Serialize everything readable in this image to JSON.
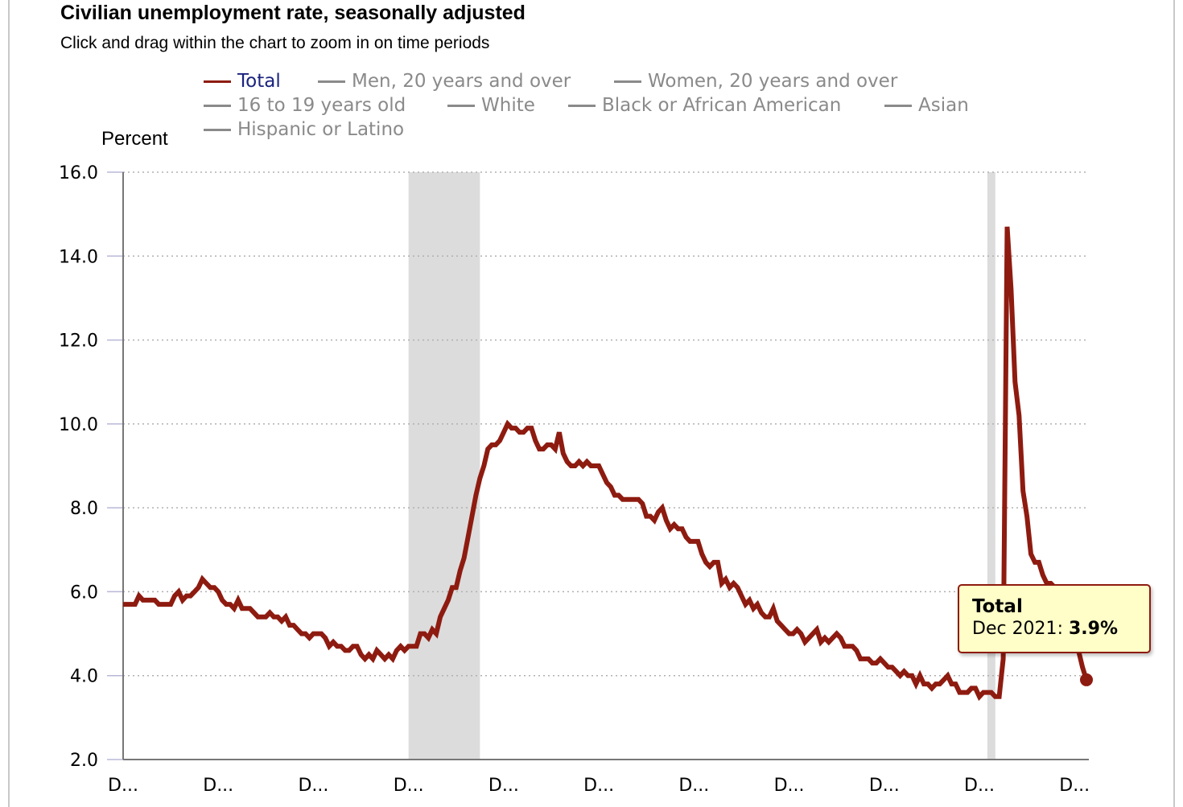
{
  "header": {
    "title": "Civilian unemployment rate, seasonally adjusted",
    "subtitle": "Click and drag within the chart to zoom in on time periods"
  },
  "legend": {
    "items": [
      {
        "label": "Total",
        "active": true
      },
      {
        "label": "Men, 20 years and over",
        "active": false
      },
      {
        "label": "Women, 20 years and over",
        "active": false
      },
      {
        "label": "16 to 19 years old",
        "active": false
      },
      {
        "label": "White",
        "active": false
      },
      {
        "label": "Black or African American",
        "active": false
      },
      {
        "label": "Asian",
        "active": false
      },
      {
        "label": "Hispanic or Latino",
        "active": false
      }
    ]
  },
  "tooltip": {
    "series": "Total",
    "date": "Dec 2021",
    "separator": ": ",
    "value": "3.9%"
  },
  "colors": {
    "series_total": "#8e1b10",
    "inactive_legend": "#8a8a8a",
    "active_legend_text": "#1a237e",
    "recession_band": "#dcdcdc",
    "tooltip_bg": "#fffec8"
  },
  "chart_data": {
    "type": "line",
    "title": "Civilian unemployment rate, seasonally adjusted",
    "ylabel": "Percent",
    "ylim": [
      2.0,
      16.0
    ],
    "yticks": [
      "2.0",
      "4.0",
      "6.0",
      "8.0",
      "10.0",
      "12.0",
      "14.0",
      "16.0"
    ],
    "xtick_labels": [
      "D...",
      "D...",
      "D...",
      "D...",
      "D...",
      "D...",
      "D...",
      "D...",
      "D...",
      "D...",
      "D..."
    ],
    "grid": true,
    "legend_position": "top",
    "start": "Dec 2001",
    "end": "Dec 2021",
    "recessions": [
      {
        "from": "Dec 2007",
        "to": "Jun 2009"
      },
      {
        "from": "Feb 2020",
        "to": "Apr 2020"
      }
    ],
    "series": [
      {
        "name": "Total",
        "color": "#8e1b10",
        "values": [
          5.7,
          5.7,
          5.7,
          5.7,
          5.9,
          5.8,
          5.8,
          5.8,
          5.8,
          5.7,
          5.7,
          5.7,
          5.7,
          5.9,
          6.0,
          5.8,
          5.9,
          5.9,
          6.0,
          6.1,
          6.3,
          6.2,
          6.1,
          6.1,
          6.0,
          5.8,
          5.7,
          5.7,
          5.6,
          5.8,
          5.6,
          5.6,
          5.6,
          5.5,
          5.4,
          5.4,
          5.4,
          5.5,
          5.4,
          5.4,
          5.3,
          5.4,
          5.2,
          5.2,
          5.1,
          5.0,
          5.0,
          4.9,
          5.0,
          5.0,
          5.0,
          4.9,
          4.7,
          4.8,
          4.7,
          4.7,
          4.6,
          4.6,
          4.7,
          4.7,
          4.5,
          4.4,
          4.5,
          4.4,
          4.6,
          4.5,
          4.4,
          4.5,
          4.4,
          4.6,
          4.7,
          4.6,
          4.7,
          4.7,
          4.7,
          5.0,
          5.0,
          4.9,
          5.1,
          5.0,
          5.4,
          5.6,
          5.8,
          6.1,
          6.1,
          6.5,
          6.8,
          7.3,
          7.8,
          8.3,
          8.7,
          9.0,
          9.4,
          9.5,
          9.5,
          9.6,
          9.8,
          10.0,
          9.9,
          9.9,
          9.8,
          9.8,
          9.9,
          9.9,
          9.6,
          9.4,
          9.4,
          9.5,
          9.5,
          9.4,
          9.8,
          9.3,
          9.1,
          9.0,
          9.0,
          9.1,
          9.0,
          9.1,
          9.0,
          9.0,
          9.0,
          8.8,
          8.6,
          8.5,
          8.3,
          8.3,
          8.2,
          8.2,
          8.2,
          8.2,
          8.2,
          8.1,
          7.8,
          7.8,
          7.7,
          7.9,
          8.0,
          7.7,
          7.5,
          7.6,
          7.5,
          7.5,
          7.3,
          7.2,
          7.2,
          7.2,
          6.9,
          6.7,
          6.6,
          6.7,
          6.7,
          6.2,
          6.3,
          6.1,
          6.2,
          6.1,
          5.9,
          5.7,
          5.8,
          5.6,
          5.7,
          5.5,
          5.4,
          5.4,
          5.6,
          5.3,
          5.2,
          5.1,
          5.0,
          5.0,
          5.1,
          5.0,
          4.8,
          4.9,
          5.0,
          5.1,
          4.8,
          4.9,
          4.8,
          4.9,
          5.0,
          4.9,
          4.7,
          4.7,
          4.7,
          4.6,
          4.4,
          4.4,
          4.4,
          4.3,
          4.3,
          4.4,
          4.3,
          4.2,
          4.2,
          4.1,
          4.0,
          4.1,
          4.0,
          4.0,
          3.8,
          4.0,
          3.8,
          3.8,
          3.7,
          3.8,
          3.8,
          3.9,
          4.0,
          3.8,
          3.8,
          3.6,
          3.6,
          3.6,
          3.7,
          3.7,
          3.5,
          3.6,
          3.6,
          3.6,
          3.5,
          3.5,
          4.4,
          14.7,
          13.2,
          11.0,
          10.2,
          8.4,
          7.8,
          6.9,
          6.7,
          6.7,
          6.4,
          6.2,
          6.2,
          6.1,
          6.0,
          5.9,
          5.4,
          5.2,
          4.8,
          4.6,
          4.2,
          3.9
        ]
      }
    ]
  }
}
